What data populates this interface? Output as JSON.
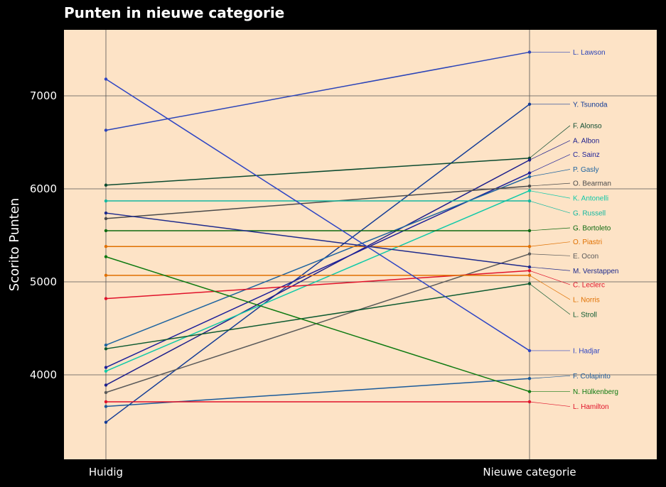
{
  "chart_data": {
    "type": "line",
    "title": "Punten in nieuwe categorie",
    "ylabel": "Scorito Punten",
    "xlabel": "",
    "categories": [
      "Huidig",
      "Nieuwe categorie"
    ],
    "ylim": [
      3100,
      7700
    ],
    "yticks": [
      4000,
      5000,
      6000,
      7000
    ],
    "grid": true,
    "background": "#fde3c6",
    "series": [
      {
        "name": "L. Lawson",
        "values": [
          6630,
          7470
        ],
        "color": "#2b44b8"
      },
      {
        "name": "Y. Tsunoda",
        "values": [
          3490,
          6910
        ],
        "color": "#143c96"
      },
      {
        "name": "F. Alonso",
        "values": [
          6040,
          6330
        ],
        "color": "#0b4a2f"
      },
      {
        "name": "A. Albon",
        "values": [
          3890,
          6310
        ],
        "color": "#1d1f8c"
      },
      {
        "name": "C. Sainz",
        "values": [
          4080,
          6170
        ],
        "color": "#1c1f99"
      },
      {
        "name": "P. Gasly",
        "values": [
          4320,
          6130
        ],
        "color": "#1e64a0"
      },
      {
        "name": "O. Bearman",
        "values": [
          5680,
          6030
        ],
        "color": "#4a4a4a"
      },
      {
        "name": "K. Antonelli",
        "values": [
          4040,
          5980
        ],
        "color": "#10c9a8"
      },
      {
        "name": "G. Russell",
        "values": [
          5870,
          5870
        ],
        "color": "#13b8a0"
      },
      {
        "name": "G. Bortoleto",
        "values": [
          5550,
          5550
        ],
        "color": "#0e6a10"
      },
      {
        "name": "O. Piastri",
        "values": [
          5380,
          5380
        ],
        "color": "#e07000"
      },
      {
        "name": "E. Ocon",
        "values": [
          3810,
          5300
        ],
        "color": "#5a5a5a"
      },
      {
        "name": "M. Verstappen",
        "values": [
          5740,
          5160
        ],
        "color": "#1d2a8c"
      },
      {
        "name": "C. Leclerc",
        "values": [
          4820,
          5120
        ],
        "color": "#e0122a"
      },
      {
        "name": "L. Norris",
        "values": [
          5070,
          5070
        ],
        "color": "#e07000"
      },
      {
        "name": "L. Stroll",
        "values": [
          4280,
          4980
        ],
        "color": "#0d5a30"
      },
      {
        "name": "I. Hadjar",
        "values": [
          7180,
          4260
        ],
        "color": "#2e45c4"
      },
      {
        "name": "F. Colapinto",
        "values": [
          3660,
          3960
        ],
        "color": "#1a5a9a"
      },
      {
        "name": "N. Hülkenberg",
        "values": [
          5270,
          3820
        ],
        "color": "#0e7a10"
      },
      {
        "name": "L. Hamilton",
        "values": [
          3710,
          3710
        ],
        "color": "#e0122a"
      }
    ],
    "label_y": {
      "L. Lawson": 7470,
      "Y. Tsunoda": 6910,
      "F. Alonso": 6680,
      "A. Albon": 6520,
      "C. Sainz": 6370,
      "P. Gasly": 6210,
      "O. Bearman": 6060,
      "K. Antonelli": 5900,
      "G. Russell": 5740,
      "G. Bortoleto": 5580,
      "O. Piastri": 5430,
      "E. Ocon": 5280,
      "M. Verstappen": 5120,
      "C. Leclerc": 4970,
      "L. Norris": 4810,
      "L. Stroll": 4650,
      "I. Hadjar": 4260,
      "F. Colapinto": 3990,
      "N. Hülkenberg": 3820,
      "L. Hamilton": 3660
    }
  }
}
